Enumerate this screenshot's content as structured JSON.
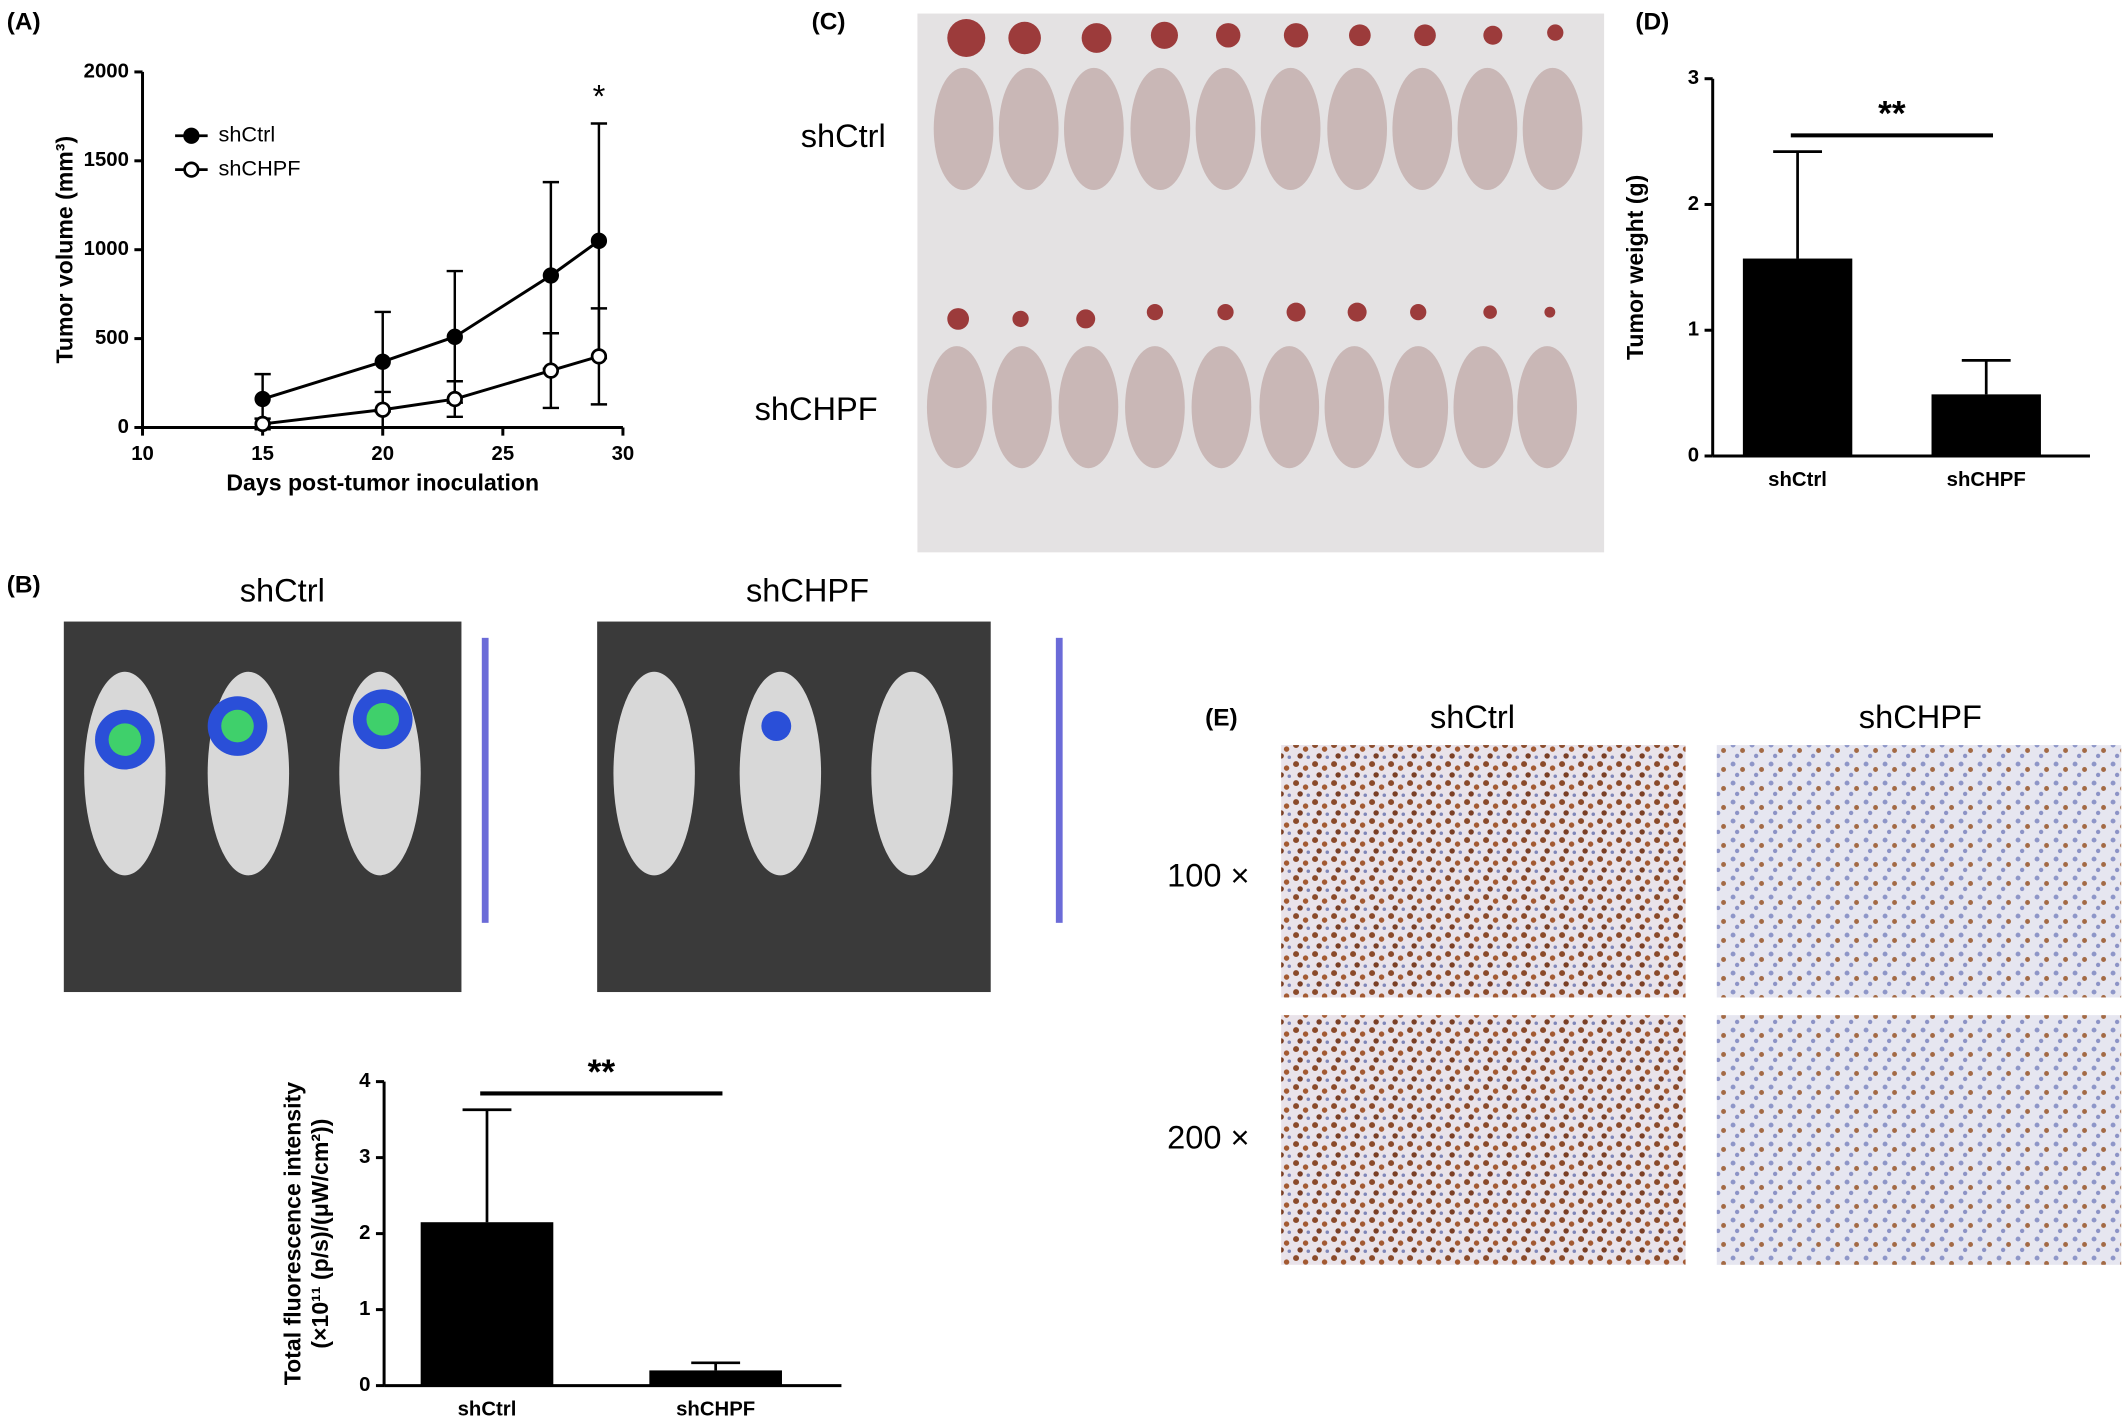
{
  "panel_labels": [
    "(A)",
    "(B)",
    "(C)",
    "(D)",
    "(E)"
  ],
  "panel_c": {
    "rows": [
      "shCtrl",
      "shCHPF"
    ]
  },
  "panel_b": {
    "columns": [
      "shCtrl",
      "shCHPF"
    ]
  },
  "panel_e": {
    "columns": [
      "shCtrl",
      "shCHPF"
    ],
    "rows": [
      "100 ×",
      "200 ×"
    ]
  },
  "chart_data": [
    {
      "type": "line",
      "xlabel": "Days post-tumor inoculation",
      "ylabel": "Tumor volume (mm³)",
      "x": [
        15,
        20,
        23,
        27,
        29
      ],
      "xlim": [
        10,
        30
      ],
      "xticks": [
        10,
        15,
        20,
        25,
        30
      ],
      "ylim": [
        0,
        2000
      ],
      "yticks": [
        0,
        500,
        1000,
        1500,
        2000
      ],
      "legend": "upper left",
      "annotation": "*",
      "series": [
        {
          "name": "shCtrl",
          "color": "#000000",
          "marker_fill": "#000000",
          "values": [
            160,
            370,
            510,
            855,
            1050
          ],
          "errors": [
            140,
            280,
            370,
            525,
            660
          ]
        },
        {
          "name": "shCHPF",
          "color": "#000000",
          "marker_fill": "#ffffff",
          "values": [
            20,
            100,
            160,
            320,
            400
          ],
          "errors": [
            30,
            100,
            100,
            210,
            270
          ]
        }
      ]
    },
    {
      "type": "bar",
      "ylabel": [
        "Tumor weight (g)"
      ],
      "categories": [
        "shCtrl",
        "shCHPF"
      ],
      "values": [
        1.57,
        0.49
      ],
      "errors": [
        0.85,
        0.27
      ],
      "color": "#000000",
      "ylim": [
        0,
        3
      ],
      "yticks": [
        0,
        1,
        2,
        3
      ],
      "annotation": "**"
    },
    {
      "type": "bar",
      "ylabel": [
        "Total fluorescence intensity",
        "(×10¹¹ (p/s)/(μW/cm²))"
      ],
      "categories": [
        "shCtrl",
        "shCHPF"
      ],
      "values": [
        2.15,
        0.2
      ],
      "errors": [
        1.48,
        0.1
      ],
      "color": "#000000",
      "ylim": [
        0,
        4
      ],
      "yticks": [
        0,
        1,
        2,
        3,
        4
      ],
      "annotation": "**"
    }
  ]
}
